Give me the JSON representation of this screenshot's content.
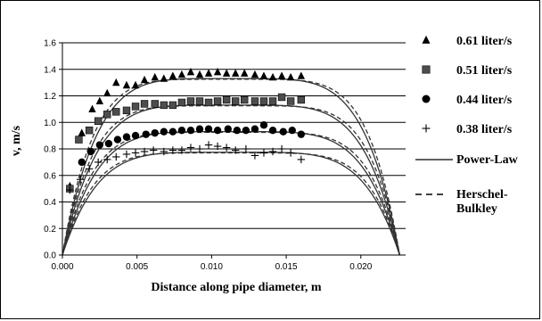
{
  "chart_data": {
    "type": "scatter",
    "xlabel": "Distance along pipe diameter, m",
    "ylabel": "v, m/s",
    "xlim": [
      0,
      0.023
    ],
    "ylim": [
      0,
      1.6
    ],
    "xticks": [
      "0.000",
      "0.005",
      "0.010",
      "0.015",
      "0.020"
    ],
    "xtick_values": [
      0,
      0.005,
      0.01,
      0.015,
      0.02
    ],
    "yticks": [
      "0.0",
      "0.2",
      "0.4",
      "0.6",
      "0.8",
      "1.0",
      "1.2",
      "1.4",
      "1.6"
    ],
    "ytick_values": [
      0,
      0.2,
      0.4,
      0.6,
      0.8,
      1.0,
      1.2,
      1.4,
      1.6
    ],
    "grid": "horizontal",
    "legend_position": "right",
    "series": [
      {
        "name": "0.61 liter/s",
        "marker": "triangle",
        "x": [
          0.0005,
          0.0013,
          0.002,
          0.0025,
          0.003,
          0.0036,
          0.0043,
          0.0049,
          0.0055,
          0.0062,
          0.0068,
          0.0074,
          0.008,
          0.0086,
          0.0092,
          0.0098,
          0.0104,
          0.011,
          0.0116,
          0.0122,
          0.0129,
          0.0135,
          0.0141,
          0.0147,
          0.0153,
          0.016
        ],
        "values": [
          0.52,
          0.92,
          1.1,
          1.16,
          1.22,
          1.3,
          1.28,
          1.28,
          1.32,
          1.34,
          1.33,
          1.35,
          1.36,
          1.38,
          1.36,
          1.37,
          1.38,
          1.37,
          1.37,
          1.37,
          1.36,
          1.35,
          1.34,
          1.35,
          1.34,
          1.35
        ]
      },
      {
        "name": "0.51 liter/s",
        "marker": "square",
        "x": [
          0.0005,
          0.0011,
          0.0018,
          0.0024,
          0.003,
          0.0036,
          0.0043,
          0.0049,
          0.0055,
          0.0062,
          0.0068,
          0.0074,
          0.008,
          0.0086,
          0.0092,
          0.0098,
          0.0104,
          0.011,
          0.0116,
          0.0122,
          0.0129,
          0.0135,
          0.0141,
          0.0147,
          0.0153,
          0.016
        ],
        "values": [
          0.5,
          0.87,
          0.94,
          1.01,
          1.06,
          1.08,
          1.09,
          1.12,
          1.14,
          1.14,
          1.13,
          1.13,
          1.15,
          1.16,
          1.16,
          1.15,
          1.16,
          1.17,
          1.16,
          1.17,
          1.16,
          1.16,
          1.16,
          1.19,
          1.16,
          1.17
        ]
      },
      {
        "name": "0.44 liter/s",
        "marker": "circle",
        "x": [
          0.0013,
          0.0019,
          0.0025,
          0.0031,
          0.0037,
          0.0043,
          0.0049,
          0.0056,
          0.0062,
          0.0068,
          0.0074,
          0.008,
          0.0086,
          0.0092,
          0.0098,
          0.0104,
          0.0111,
          0.0117,
          0.0123,
          0.0129,
          0.0135,
          0.0141,
          0.0148,
          0.0154,
          0.016
        ],
        "values": [
          0.7,
          0.78,
          0.83,
          0.84,
          0.87,
          0.89,
          0.9,
          0.91,
          0.92,
          0.93,
          0.93,
          0.94,
          0.94,
          0.95,
          0.95,
          0.94,
          0.95,
          0.94,
          0.94,
          0.95,
          0.98,
          0.94,
          0.93,
          0.94,
          0.91
        ]
      },
      {
        "name": "0.38 liter/s",
        "marker": "plus",
        "x": [
          0.0005,
          0.0012,
          0.0018,
          0.0024,
          0.003,
          0.0036,
          0.0043,
          0.0049,
          0.0055,
          0.0061,
          0.0068,
          0.0074,
          0.008,
          0.0086,
          0.0092,
          0.0098,
          0.0104,
          0.011,
          0.0116,
          0.0123,
          0.0129,
          0.0135,
          0.0141,
          0.0147,
          0.0153,
          0.016
        ],
        "values": [
          0.49,
          0.57,
          0.65,
          0.7,
          0.72,
          0.74,
          0.76,
          0.77,
          0.78,
          0.79,
          0.78,
          0.79,
          0.79,
          0.81,
          0.8,
          0.83,
          0.82,
          0.81,
          0.79,
          0.8,
          0.75,
          0.77,
          0.78,
          0.8,
          0.77,
          0.72
        ]
      }
    ],
    "model_curves": [
      {
        "name": "Power-Law",
        "style": "solid",
        "pipe_diameter": 0.0226,
        "vmax": [
          1.33,
          1.13,
          0.93,
          0.775
        ],
        "profile_exponent": 5
      },
      {
        "name": "Herschel-Bulkley",
        "style": "dashed",
        "pipe_diameter": 0.0226,
        "vmax": [
          1.325,
          1.125,
          0.925,
          0.77
        ],
        "profile_exponent": 5.6
      }
    ],
    "legend": [
      {
        "label": "0.61 liter/s",
        "symbol": "triangle"
      },
      {
        "label": "0.51 liter/s",
        "symbol": "square"
      },
      {
        "label": "0.44 liter/s",
        "symbol": "circle"
      },
      {
        "label": "0.38 liter/s",
        "symbol": "plus"
      },
      {
        "label": "Power-Law",
        "symbol": "solid-line"
      },
      {
        "label": "Herschel-Bulkley",
        "symbol": "dashed-line"
      }
    ],
    "colors": {
      "marker": "#000000",
      "square_fill": "#4d4d4d",
      "model_line": "#333333",
      "dashed_line": "#333333"
    }
  }
}
